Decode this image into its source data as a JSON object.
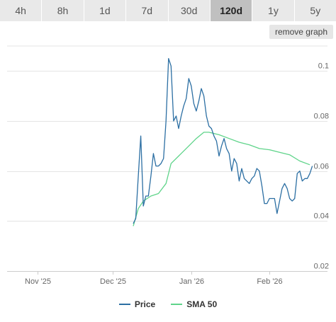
{
  "tabs": [
    {
      "label": "4h",
      "active": false
    },
    {
      "label": "8h",
      "active": false
    },
    {
      "label": "1d",
      "active": false
    },
    {
      "label": "7d",
      "active": false
    },
    {
      "label": "30d",
      "active": false
    },
    {
      "label": "120d",
      "active": true
    },
    {
      "label": "1y",
      "active": false
    },
    {
      "label": "5y",
      "active": false
    }
  ],
  "remove_graph_label": "remove graph",
  "colors": {
    "price": "#2c6fa3",
    "sma": "#5fd48a",
    "grid": "#e4e4e4",
    "axis_text": "#666666"
  },
  "chart_data": {
    "type": "line",
    "title": "",
    "xlabel": "",
    "ylabel": "",
    "x_range": [
      "2025-10-20",
      "2026-02-24"
    ],
    "ylim": [
      0.02,
      0.11
    ],
    "y_ticks": [
      0.02,
      0.04,
      0.06,
      0.08,
      0.1
    ],
    "y_tick_labels": [
      "0.02",
      "0.04",
      "0.06",
      "0.08",
      "0.1"
    ],
    "x_ticks": [
      {
        "date": "2025-11-01",
        "label": "Nov '25"
      },
      {
        "date": "2025-12-01",
        "label": "Dec '25"
      },
      {
        "date": "2026-01-01",
        "label": "Jan '26"
      },
      {
        "date": "2026-02-01",
        "label": "Feb '26"
      }
    ],
    "legend_position": "bottom-center",
    "grid": true,
    "series": [
      {
        "name": "Price",
        "points": [
          [
            "2025-12-09",
            0.039
          ],
          [
            "2025-12-10",
            0.041
          ],
          [
            "2025-12-11",
            0.058
          ],
          [
            "2025-12-12",
            0.074
          ],
          [
            "2025-12-13",
            0.046
          ],
          [
            "2025-12-14",
            0.05
          ],
          [
            "2025-12-15",
            0.05
          ],
          [
            "2025-12-16",
            0.058
          ],
          [
            "2025-12-17",
            0.067
          ],
          [
            "2025-12-18",
            0.062
          ],
          [
            "2025-12-19",
            0.062
          ],
          [
            "2025-12-20",
            0.063
          ],
          [
            "2025-12-21",
            0.065
          ],
          [
            "2025-12-22",
            0.08
          ],
          [
            "2025-12-23",
            0.105
          ],
          [
            "2025-12-24",
            0.102
          ],
          [
            "2025-12-25",
            0.08
          ],
          [
            "2025-12-26",
            0.082
          ],
          [
            "2025-12-27",
            0.077
          ],
          [
            "2025-12-28",
            0.082
          ],
          [
            "2025-12-29",
            0.086
          ],
          [
            "2025-12-30",
            0.089
          ],
          [
            "2025-12-31",
            0.097
          ],
          [
            "2026-01-01",
            0.094
          ],
          [
            "2026-01-02",
            0.087
          ],
          [
            "2026-01-03",
            0.084
          ],
          [
            "2026-01-04",
            0.088
          ],
          [
            "2026-01-05",
            0.093
          ],
          [
            "2026-01-06",
            0.09
          ],
          [
            "2026-01-07",
            0.082
          ],
          [
            "2026-01-08",
            0.078
          ],
          [
            "2026-01-09",
            0.077
          ],
          [
            "2026-01-10",
            0.074
          ],
          [
            "2026-01-11",
            0.072
          ],
          [
            "2026-01-12",
            0.066
          ],
          [
            "2026-01-13",
            0.07
          ],
          [
            "2026-01-14",
            0.073
          ],
          [
            "2026-01-15",
            0.069
          ],
          [
            "2026-01-16",
            0.067
          ],
          [
            "2026-01-17",
            0.06
          ],
          [
            "2026-01-18",
            0.065
          ],
          [
            "2026-01-19",
            0.063
          ],
          [
            "2026-01-20",
            0.056
          ],
          [
            "2026-01-21",
            0.061
          ],
          [
            "2026-01-22",
            0.057
          ],
          [
            "2026-01-23",
            0.056
          ],
          [
            "2026-01-24",
            0.055
          ],
          [
            "2026-01-25",
            0.057
          ],
          [
            "2026-01-26",
            0.058
          ],
          [
            "2026-01-27",
            0.061
          ],
          [
            "2026-01-28",
            0.06
          ],
          [
            "2026-01-29",
            0.054
          ],
          [
            "2026-01-30",
            0.047
          ],
          [
            "2026-01-31",
            0.047
          ],
          [
            "2026-02-01",
            0.049
          ],
          [
            "2026-02-02",
            0.049
          ],
          [
            "2026-02-03",
            0.049
          ],
          [
            "2026-02-04",
            0.043
          ],
          [
            "2026-02-05",
            0.048
          ],
          [
            "2026-02-06",
            0.053
          ],
          [
            "2026-02-07",
            0.055
          ],
          [
            "2026-02-08",
            0.053
          ],
          [
            "2026-02-09",
            0.049
          ],
          [
            "2026-02-10",
            0.048
          ],
          [
            "2026-02-11",
            0.049
          ],
          [
            "2026-02-12",
            0.059
          ],
          [
            "2026-02-13",
            0.06
          ],
          [
            "2026-02-14",
            0.056
          ],
          [
            "2026-02-15",
            0.057
          ],
          [
            "2026-02-16",
            0.057
          ],
          [
            "2026-02-17",
            0.059
          ],
          [
            "2026-02-18",
            0.062
          ]
        ]
      },
      {
        "name": "SMA 50",
        "points": [
          [
            "2025-12-09",
            0.038
          ],
          [
            "2025-12-11",
            0.045
          ],
          [
            "2025-12-13",
            0.048
          ],
          [
            "2025-12-16",
            0.05
          ],
          [
            "2025-12-19",
            0.051
          ],
          [
            "2025-12-22",
            0.055
          ],
          [
            "2025-12-24",
            0.063
          ],
          [
            "2025-12-27",
            0.066
          ],
          [
            "2025-12-31",
            0.07
          ],
          [
            "2026-01-03",
            0.073
          ],
          [
            "2026-01-06",
            0.0755
          ],
          [
            "2026-01-08",
            0.0755
          ],
          [
            "2026-01-12",
            0.0745
          ],
          [
            "2026-01-16",
            0.073
          ],
          [
            "2026-01-20",
            0.0715
          ],
          [
            "2026-01-24",
            0.0705
          ],
          [
            "2026-01-28",
            0.069
          ],
          [
            "2026-02-01",
            0.0685
          ],
          [
            "2026-02-05",
            0.0675
          ],
          [
            "2026-02-09",
            0.0665
          ],
          [
            "2026-02-13",
            0.064
          ],
          [
            "2026-02-17",
            0.0625
          ]
        ]
      }
    ]
  }
}
